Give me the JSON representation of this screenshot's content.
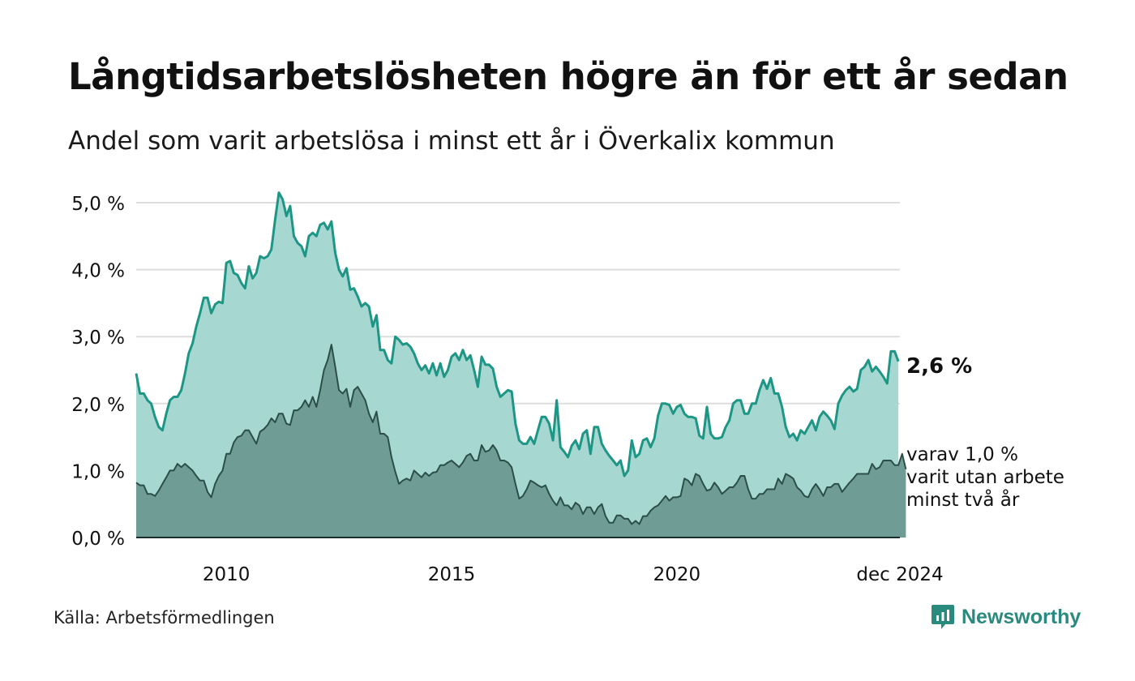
{
  "header": {
    "title": "Långtidsarbetslösheten högre än för ett år sedan",
    "subtitle": "Andel som varit arbetslösa i minst ett år i Överkalix kommun"
  },
  "footer": {
    "source": "Källa: Arbetsförmedlingen",
    "brand": "Newsworthy"
  },
  "colors": {
    "total_fill": "#a6d8d1",
    "total_line": "#1d9686",
    "sub_fill": "#6f9d96",
    "sub_line": "#2b4f48",
    "grid": "#dddddd"
  },
  "chart_data": {
    "type": "area",
    "x_start": 2008.0,
    "x_end": 2024.95,
    "step_months": 1,
    "xlim": [
      2008.0,
      2024.95
    ],
    "ylim": [
      0,
      5.0
    ],
    "y_ticks": [
      0,
      1,
      2,
      3,
      4,
      5
    ],
    "y_tick_labels": [
      "0,0 %",
      "1,0 %",
      "2,0 %",
      "3,0 %",
      "4,0 %",
      "5,0 %"
    ],
    "x_ticks": [
      2010,
      2015,
      2020,
      2024.95
    ],
    "x_tick_labels": [
      "2010",
      "2015",
      "2020",
      "dec 2024"
    ],
    "grid": true,
    "annotations": {
      "total_end_label": "2,6 %",
      "sub_end_label": [
        "varav 1,0 %",
        "varit utan arbete",
        "minst två år"
      ]
    },
    "series": [
      {
        "name": "Arbetslösa minst ett år",
        "values": [
          2.45,
          2.15,
          2.15,
          2.05,
          2.0,
          1.8,
          1.65,
          1.6,
          1.85,
          2.05,
          2.1,
          2.1,
          2.2,
          2.45,
          2.75,
          2.9,
          3.15,
          3.35,
          3.58,
          3.58,
          3.35,
          3.48,
          3.52,
          3.5,
          4.1,
          4.13,
          3.95,
          3.92,
          3.8,
          3.72,
          4.05,
          3.87,
          3.95,
          4.2,
          4.17,
          4.2,
          4.3,
          4.75,
          5.15,
          5.05,
          4.8,
          4.95,
          4.5,
          4.4,
          4.35,
          4.2,
          4.5,
          4.55,
          4.5,
          4.67,
          4.7,
          4.6,
          4.72,
          4.25,
          4.0,
          3.9,
          4.02,
          3.7,
          3.72,
          3.6,
          3.45,
          3.5,
          3.45,
          3.15,
          3.32,
          2.8,
          2.8,
          2.65,
          2.6,
          3.0,
          2.95,
          2.88,
          2.9,
          2.85,
          2.75,
          2.6,
          2.5,
          2.57,
          2.45,
          2.6,
          2.42,
          2.6,
          2.4,
          2.5,
          2.7,
          2.75,
          2.65,
          2.8,
          2.65,
          2.72,
          2.5,
          2.25,
          2.7,
          2.58,
          2.58,
          2.52,
          2.25,
          2.1,
          2.15,
          2.2,
          2.18,
          1.7,
          1.45,
          1.4,
          1.4,
          1.5,
          1.4,
          1.6,
          1.8,
          1.8,
          1.7,
          1.45,
          2.05,
          1.35,
          1.28,
          1.2,
          1.37,
          1.45,
          1.32,
          1.55,
          1.6,
          1.25,
          1.65,
          1.65,
          1.4,
          1.3,
          1.22,
          1.15,
          1.08,
          1.15,
          0.92,
          1.0,
          1.45,
          1.2,
          1.25,
          1.45,
          1.48,
          1.35,
          1.48,
          1.82,
          2.0,
          2.0,
          1.98,
          1.85,
          1.95,
          1.98,
          1.85,
          1.8,
          1.8,
          1.78,
          1.52,
          1.48,
          1.95,
          1.55,
          1.48,
          1.48,
          1.5,
          1.65,
          1.75,
          2.0,
          2.05,
          2.05,
          1.85,
          1.85,
          2.0,
          2.0,
          2.2,
          2.35,
          2.22,
          2.38,
          2.15,
          2.15,
          1.95,
          1.65,
          1.5,
          1.55,
          1.45,
          1.6,
          1.55,
          1.65,
          1.75,
          1.6,
          1.8,
          1.88,
          1.82,
          1.75,
          1.62,
          2.0,
          2.12,
          2.2,
          2.25,
          2.18,
          2.22,
          2.5,
          2.55,
          2.65,
          2.48,
          2.55,
          2.48,
          2.4,
          2.3,
          2.78,
          2.78,
          2.63
        ]
      },
      {
        "name": "varav minst två år",
        "values": [
          0.82,
          0.78,
          0.78,
          0.65,
          0.65,
          0.62,
          0.7,
          0.8,
          0.9,
          1.0,
          1.0,
          1.1,
          1.05,
          1.1,
          1.05,
          1.0,
          0.92,
          0.85,
          0.85,
          0.68,
          0.6,
          0.8,
          0.92,
          1.0,
          1.25,
          1.25,
          1.42,
          1.5,
          1.52,
          1.6,
          1.6,
          1.5,
          1.4,
          1.58,
          1.62,
          1.68,
          1.78,
          1.72,
          1.85,
          1.85,
          1.7,
          1.68,
          1.9,
          1.9,
          1.95,
          2.05,
          1.95,
          2.1,
          1.95,
          2.2,
          2.5,
          2.65,
          2.88,
          2.55,
          2.2,
          2.15,
          2.22,
          1.95,
          2.2,
          2.25,
          2.15,
          2.05,
          1.85,
          1.72,
          1.88,
          1.55,
          1.55,
          1.5,
          1.2,
          0.98,
          0.8,
          0.85,
          0.88,
          0.85,
          1.0,
          0.95,
          0.9,
          0.97,
          0.92,
          0.97,
          0.98,
          1.08,
          1.08,
          1.12,
          1.15,
          1.1,
          1.05,
          1.12,
          1.22,
          1.25,
          1.15,
          1.15,
          1.38,
          1.28,
          1.3,
          1.38,
          1.3,
          1.15,
          1.15,
          1.12,
          1.05,
          0.8,
          0.58,
          0.62,
          0.72,
          0.85,
          0.82,
          0.78,
          0.75,
          0.78,
          0.65,
          0.55,
          0.48,
          0.6,
          0.48,
          0.48,
          0.42,
          0.52,
          0.48,
          0.35,
          0.45,
          0.45,
          0.35,
          0.45,
          0.5,
          0.32,
          0.22,
          0.22,
          0.33,
          0.33,
          0.28,
          0.28,
          0.2,
          0.25,
          0.2,
          0.32,
          0.32,
          0.4,
          0.45,
          0.48,
          0.55,
          0.62,
          0.55,
          0.6,
          0.6,
          0.62,
          0.88,
          0.85,
          0.78,
          0.95,
          0.92,
          0.8,
          0.7,
          0.72,
          0.82,
          0.75,
          0.65,
          0.7,
          0.75,
          0.75,
          0.82,
          0.92,
          0.92,
          0.72,
          0.58,
          0.58,
          0.65,
          0.65,
          0.72,
          0.72,
          0.72,
          0.88,
          0.8,
          0.95,
          0.92,
          0.88,
          0.75,
          0.7,
          0.62,
          0.6,
          0.72,
          0.8,
          0.72,
          0.62,
          0.75,
          0.75,
          0.8,
          0.8,
          0.68,
          0.75,
          0.82,
          0.88,
          0.95,
          0.95,
          0.95,
          0.95,
          1.1,
          1.02,
          1.05,
          1.15,
          1.15,
          1.15,
          1.08,
          1.08,
          1.25,
          1.02
        ]
      }
    ]
  }
}
